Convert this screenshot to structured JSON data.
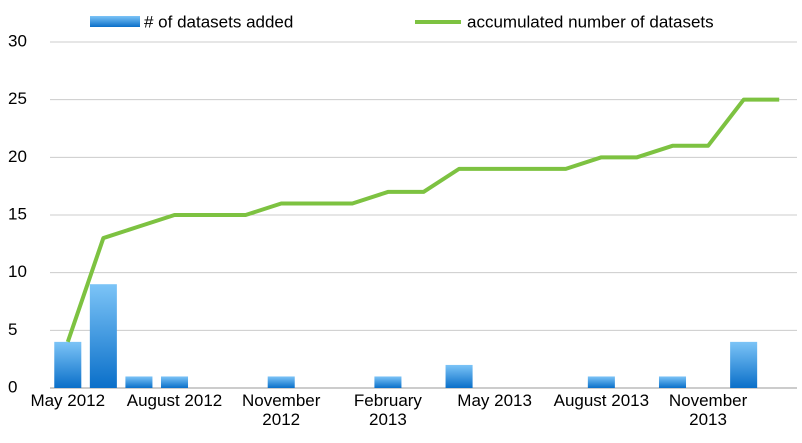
{
  "chart_data": {
    "type": "bar",
    "categories": [
      "May 2012",
      null,
      null,
      "August 2012",
      null,
      null,
      "November 2012",
      null,
      null,
      "February 2013",
      null,
      null,
      "May 2013",
      null,
      null,
      "August 2013",
      null,
      null,
      "November 2013",
      null,
      null
    ],
    "series": [
      {
        "name": "# of datasets added",
        "type": "bar",
        "color": "#2a8fe0",
        "values": [
          4,
          9,
          1,
          1,
          0,
          0,
          1,
          0,
          0,
          1,
          0,
          2,
          0,
          0,
          0,
          1,
          0,
          1,
          0,
          4,
          0
        ]
      },
      {
        "name": "accumulated number of datasets",
        "type": "line",
        "color": "#7dc241",
        "values": [
          4,
          13,
          14,
          15,
          15,
          15,
          16,
          16,
          16,
          17,
          17,
          19,
          19,
          19,
          19,
          20,
          20,
          21,
          21,
          25,
          25
        ]
      }
    ],
    "ylim": [
      0,
      30
    ],
    "yticks": [
      0,
      5,
      10,
      15,
      20,
      25,
      30
    ],
    "grid": true,
    "legend": "top"
  }
}
